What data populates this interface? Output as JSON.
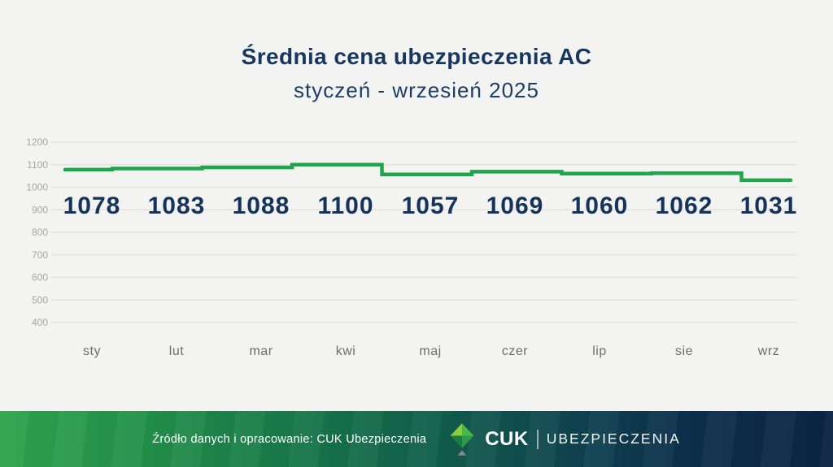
{
  "page": {
    "background_color": "#f3f3f2",
    "title": "Średnia cena ubezpieczenia AC",
    "subtitle": "styczeń - wrzesień 2025",
    "title_color": "#17375e"
  },
  "chart_data": {
    "type": "line",
    "subtype": "step",
    "title": "Średnia cena ubezpieczenia AC",
    "subtitle": "styczeń - wrzesień 2025",
    "categories": [
      "sty",
      "lut",
      "mar",
      "kwi",
      "maj",
      "czer",
      "lip",
      "sie",
      "wrz"
    ],
    "values": [
      1078,
      1083,
      1088,
      1100,
      1057,
      1069,
      1060,
      1062,
      1031
    ],
    "ylim": [
      400,
      1200
    ],
    "yticks": [
      400,
      500,
      600,
      700,
      800,
      900,
      1000,
      1100,
      1200
    ],
    "grid": true,
    "legend": "none",
    "line_color": "#1fa54b",
    "value_label_color": "#16345a",
    "axis_tick_color": "#a6a6a6",
    "month_label_color": "#6e6e6e",
    "gridline_color": "#e0e0e1"
  },
  "footer": {
    "source_text": "Źródło danych i opracowanie: CUK Ubezpieczenia",
    "brand_name": "CUK",
    "brand_suffix": "UBEZPIECZENIA",
    "logo_icon": "cuk-diamond-icon",
    "gradient_from": "#2fa44e",
    "gradient_mid": "#146a4b",
    "gradient_to": "#0c2444"
  }
}
